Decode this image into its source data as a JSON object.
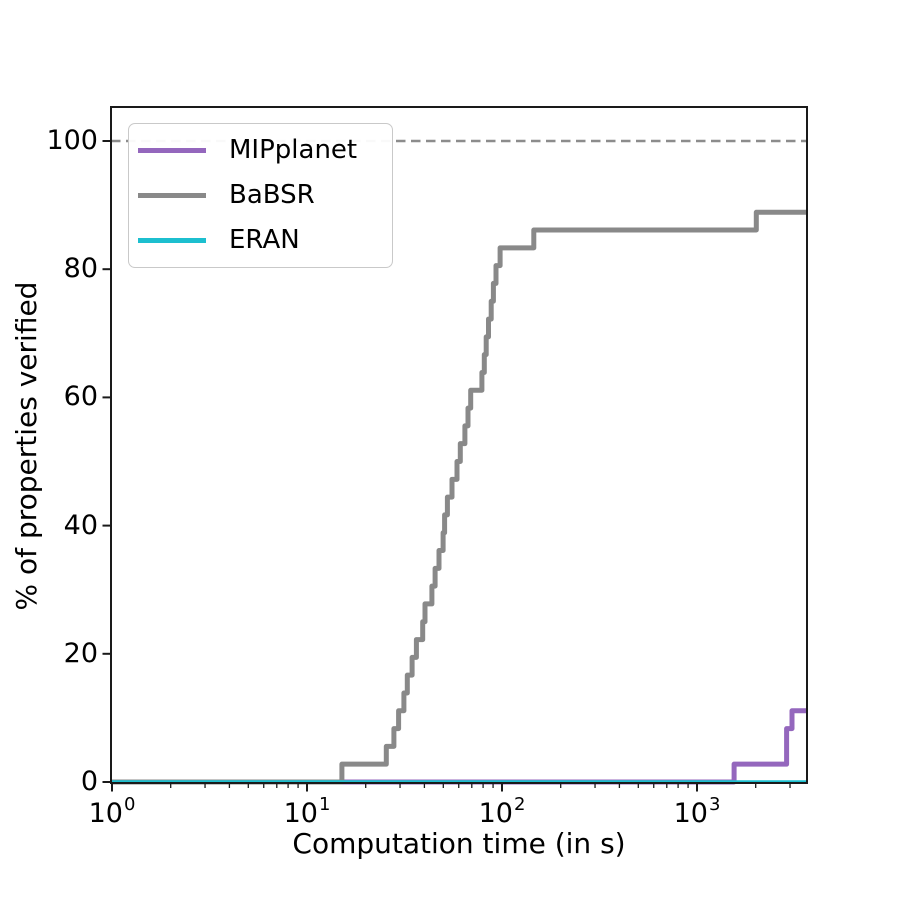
{
  "chart_data": {
    "type": "line",
    "subtype": "cumulative-step (cactus plot)",
    "title": "",
    "xlabel": "Computation time (in s)",
    "ylabel": "% of properties verified",
    "x_scale": "log",
    "xlim": [
      1,
      3668
    ],
    "ylim": [
      0,
      105
    ],
    "grid": false,
    "legend_position": "upper left",
    "reference_line": {
      "y": 100,
      "style": "dashed",
      "color": "#8c8c8c"
    },
    "x_tick_values": [
      1,
      10,
      100,
      1000
    ],
    "y_tick_values": [
      0,
      20,
      40,
      60,
      80,
      100
    ],
    "series": [
      {
        "name": "MIPplanet",
        "color": "#9467bd",
        "line_width": 5,
        "start_value": 0,
        "end_value": 11.11,
        "steps": [
          [
            1550,
            2.78
          ],
          [
            2880,
            8.33
          ],
          [
            3070,
            11.11
          ]
        ]
      },
      {
        "name": "BaBSR",
        "color": "#898989",
        "line_width": 5,
        "start_value": 0,
        "end_value": 88.89,
        "steps": [
          [
            15.1,
            2.78
          ],
          [
            25.5,
            5.56
          ],
          [
            27.9,
            8.33
          ],
          [
            29.5,
            11.11
          ],
          [
            31.4,
            13.89
          ],
          [
            32.7,
            16.67
          ],
          [
            34.6,
            19.44
          ],
          [
            36.4,
            22.22
          ],
          [
            39.2,
            25.0
          ],
          [
            40.3,
            27.78
          ],
          [
            43.7,
            30.56
          ],
          [
            45.4,
            33.33
          ],
          [
            47.5,
            36.11
          ],
          [
            49.9,
            38.89
          ],
          [
            50.8,
            41.67
          ],
          [
            52.5,
            44.44
          ],
          [
            55.4,
            47.22
          ],
          [
            58.8,
            50.0
          ],
          [
            61.1,
            52.78
          ],
          [
            64.5,
            55.56
          ],
          [
            66.9,
            58.33
          ],
          [
            69.1,
            61.11
          ],
          [
            78.9,
            63.89
          ],
          [
            81.1,
            66.67
          ],
          [
            83.0,
            69.44
          ],
          [
            85.3,
            72.22
          ],
          [
            88.0,
            75.0
          ],
          [
            90.3,
            77.78
          ],
          [
            93.2,
            80.56
          ],
          [
            97.8,
            83.33
          ],
          [
            145.5,
            86.11
          ],
          [
            2015,
            88.89
          ]
        ]
      },
      {
        "name": "ERAN",
        "color": "#1cbfcf",
        "line_width": 3.5,
        "start_value": 0,
        "end_value": 0,
        "steps": []
      }
    ]
  },
  "axes": {
    "x": {
      "label": "Computation time (in s)",
      "ticks": [
        {
          "base": "10",
          "exp": "0"
        },
        {
          "base": "10",
          "exp": "1"
        },
        {
          "base": "10",
          "exp": "2"
        },
        {
          "base": "10",
          "exp": "3"
        }
      ]
    },
    "y": {
      "label": "% of properties verified",
      "ticks": [
        "100",
        "80",
        "60",
        "40",
        "20",
        "0"
      ]
    }
  },
  "legend": {
    "items": [
      {
        "label": "MIPplanet",
        "color": "#9467bd"
      },
      {
        "label": "BaBSR",
        "color": "#898989"
      },
      {
        "label": "ERAN",
        "color": "#1cbfcf"
      }
    ]
  }
}
